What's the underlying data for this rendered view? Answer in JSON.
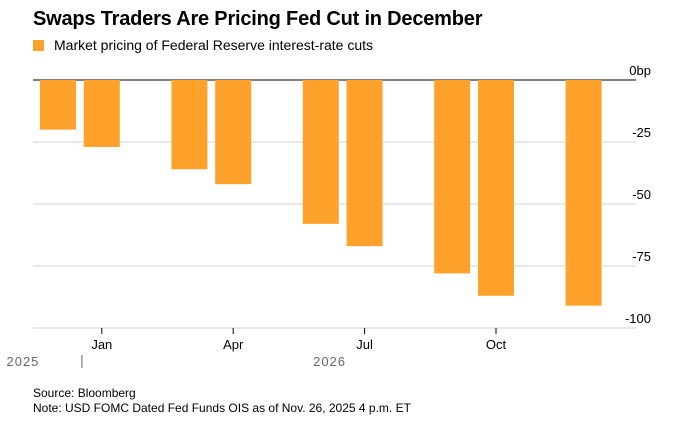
{
  "title": "Swaps Traders Are Pricing Fed Cut in December",
  "legend": {
    "label": "Market pricing of Federal Reserve interest-rate cuts",
    "color": "#FFA22B"
  },
  "footer": {
    "source": "Source: Bloomberg",
    "note": "Note: USD FOMC Dated Fed Funds OIS as of Nov. 26, 2025 4 p.m. ET"
  },
  "chart_data": {
    "type": "bar",
    "series": [
      {
        "name": "Market pricing of Federal Reserve interest-rate cuts",
        "color": "#FFA22B",
        "values": [
          -20,
          -27,
          -36,
          -42,
          -58,
          -67,
          -78,
          -87,
          -91
        ]
      }
    ],
    "categories": [
      "Dec 2025",
      "Jan 2026",
      "Mar 2026",
      "Apr 2026",
      "Jun 2026",
      "Jul 2026",
      "Sep 2026",
      "Oct 2026",
      "Dec 2026"
    ],
    "month_index": [
      0,
      1,
      3,
      4,
      6,
      7,
      9,
      10,
      12
    ],
    "x_ticks": [
      {
        "label": "Jan",
        "month_index": 1
      },
      {
        "label": "Apr",
        "month_index": 4
      },
      {
        "label": "Jul",
        "month_index": 7
      },
      {
        "label": "Oct",
        "month_index": 10
      }
    ],
    "year_labels": [
      {
        "label": "2025",
        "month_index": -0.8
      },
      {
        "label": "2026",
        "month_index": 6.2
      }
    ],
    "year_separator_month_index": 0.5,
    "y_ticks": [
      {
        "value": 0,
        "label": "0bp"
      },
      {
        "value": -25,
        "label": "-25"
      },
      {
        "value": -50,
        "label": "-50"
      },
      {
        "value": -75,
        "label": "-75"
      },
      {
        "value": -100,
        "label": "-100"
      }
    ],
    "ylim": [
      -100,
      0
    ],
    "xlabel": "",
    "ylabel": "bp",
    "grid": true
  }
}
